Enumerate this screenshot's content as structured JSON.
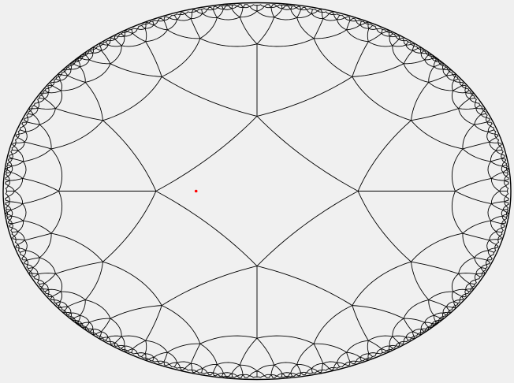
{
  "diagram": {
    "kind": "hyperbolic-tiling",
    "model": "poincare-disk",
    "schlafli": [
      4,
      5
    ],
    "depth": 6,
    "colors": {
      "background": "#f0f0f0",
      "edges": "#000000",
      "marker": "#ff0000"
    },
    "marker": {
      "u": -0.24,
      "v": 0.0
    }
  }
}
